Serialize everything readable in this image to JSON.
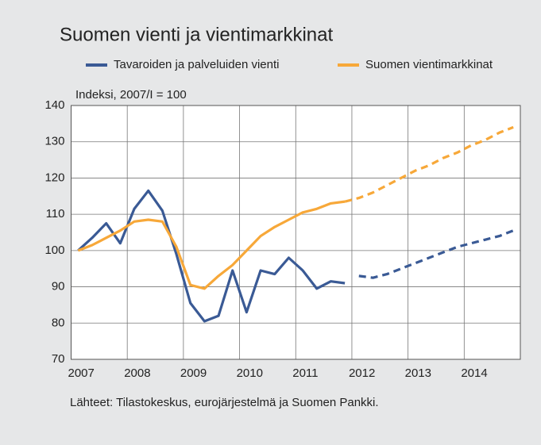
{
  "chart_data": {
    "type": "line",
    "title": "Suomen vienti ja vientimarkkinat",
    "y_label": "Indeksi, 2007/I = 100",
    "source": "Lähteet: Tilastokeskus, eurojärjestelmä ja Suomen Pankki.",
    "x": [
      2007.125,
      2007.375,
      2007.625,
      2007.875,
      2008.125,
      2008.375,
      2008.625,
      2008.875,
      2009.125,
      2009.375,
      2009.625,
      2009.875,
      2010.125,
      2010.375,
      2010.625,
      2010.875,
      2011.125,
      2011.375,
      2011.625,
      2011.875,
      2012.125,
      2012.375,
      2012.625,
      2012.875,
      2013.125,
      2013.375,
      2013.625,
      2013.875,
      2014.125,
      2014.375,
      2014.625,
      2014.875
    ],
    "series": [
      {
        "name": "Tavaroiden ja palveluiden vienti",
        "color": "#3a5a95",
        "values": [
          100,
          103.5,
          107.5,
          102,
          111.5,
          116.5,
          111,
          99,
          85.5,
          80.5,
          82,
          94.5,
          83,
          94.5,
          93.5,
          98,
          94.5,
          89.5,
          91.5,
          91,
          null,
          null,
          null,
          null,
          null,
          null,
          null,
          null,
          null,
          null,
          null,
          null
        ],
        "projection": [
          null,
          null,
          null,
          null,
          null,
          null,
          null,
          null,
          null,
          null,
          null,
          null,
          null,
          null,
          null,
          null,
          null,
          null,
          null,
          null,
          93,
          92.5,
          93.5,
          95,
          96.5,
          98,
          99.5,
          101,
          102,
          103,
          104,
          105.5
        ]
      },
      {
        "name": "Suomen vientimarkkinat",
        "color": "#f7a839",
        "values": [
          100,
          101.5,
          103.5,
          105.5,
          108,
          108.5,
          108,
          101,
          90.5,
          89.5,
          93,
          96,
          100,
          104,
          106.5,
          108.5,
          110.5,
          111.5,
          113,
          113.5,
          null,
          null,
          null,
          null,
          null,
          null,
          null,
          null,
          null,
          null,
          null,
          null
        ],
        "projection": [
          null,
          null,
          null,
          null,
          null,
          null,
          null,
          null,
          null,
          null,
          null,
          null,
          null,
          null,
          null,
          null,
          null,
          null,
          null,
          113.5,
          114.5,
          116,
          118,
          120,
          122,
          123.5,
          125.5,
          127,
          129,
          130.5,
          132.5,
          134
        ]
      }
    ],
    "xlim": [
      2007,
      2015
    ],
    "xticks": [
      2007,
      2008,
      2009,
      2010,
      2011,
      2012,
      2013,
      2014
    ],
    "ylim": [
      70,
      140
    ],
    "yticks": [
      70,
      80,
      90,
      100,
      110,
      120,
      130,
      140
    ],
    "grid": true
  }
}
